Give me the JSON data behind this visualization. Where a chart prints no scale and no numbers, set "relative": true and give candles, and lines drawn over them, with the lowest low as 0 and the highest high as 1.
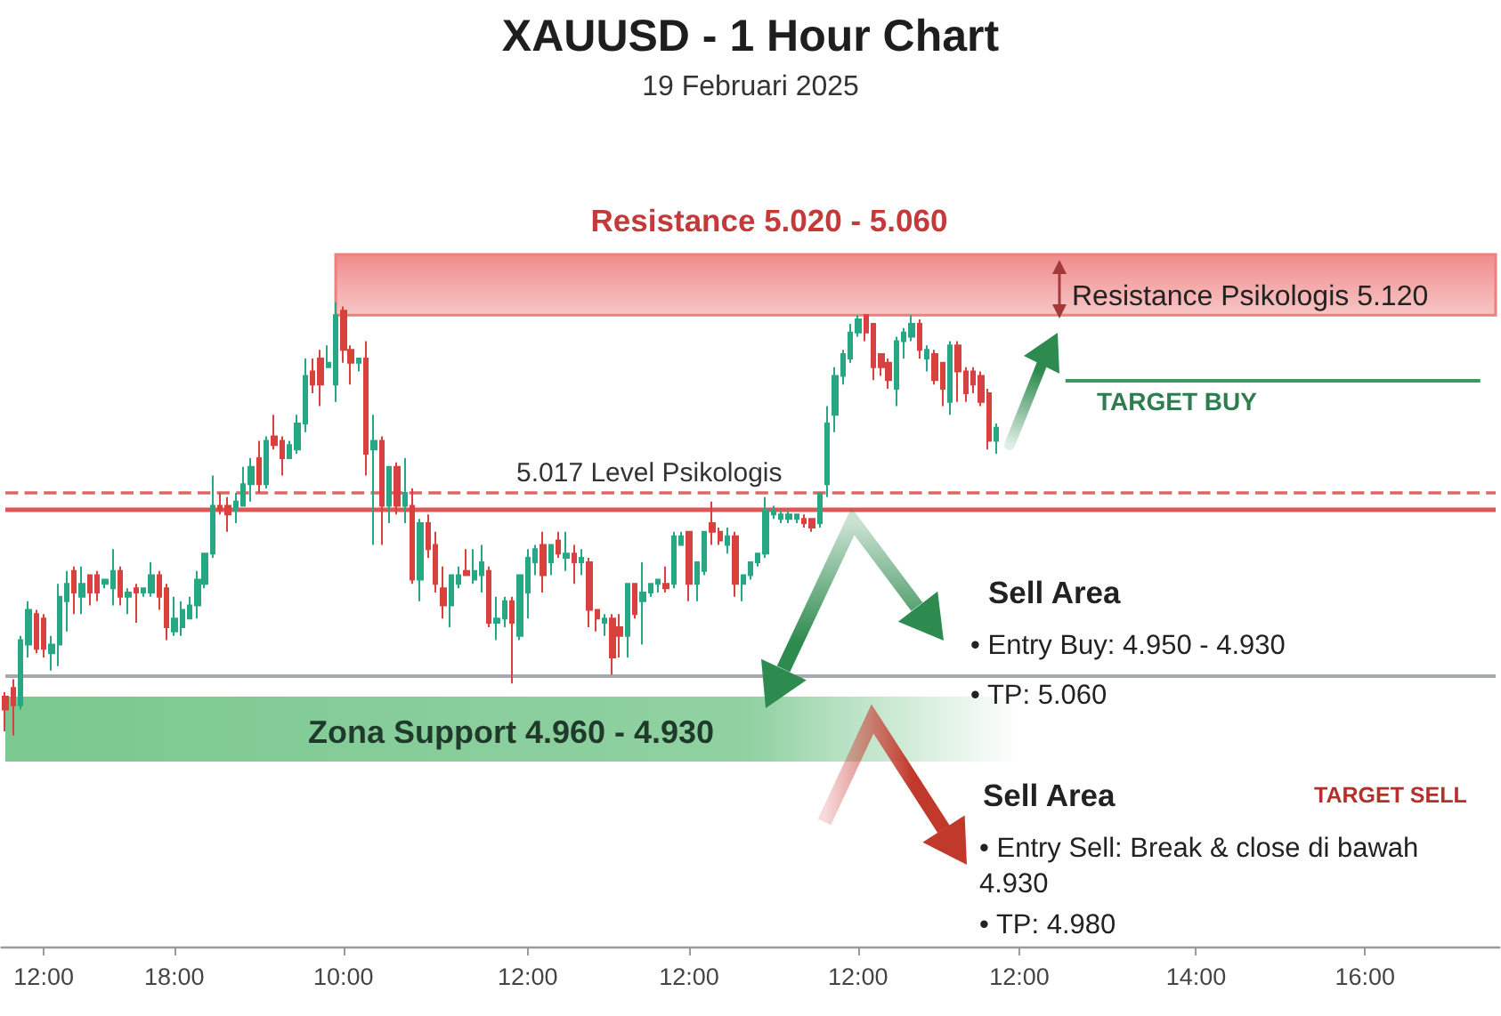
{
  "chart_data": {
    "type": "candlestick",
    "title": "XAUUSD - 1 Hour Chart",
    "subtitle": "19 Februari 2025",
    "relative": true,
    "categories": [
      null,
      null,
      null,
      null,
      null,
      "12:00",
      null,
      null,
      null,
      null,
      null,
      null,
      null,
      null,
      null,
      null,
      null,
      null,
      null,
      null,
      null,
      null,
      "18:00",
      null,
      null,
      null,
      null,
      null,
      null,
      null,
      null,
      null,
      null,
      null,
      null,
      null,
      null,
      null,
      null,
      null,
      null,
      null,
      null,
      null,
      "10:00",
      null,
      null,
      null,
      null,
      null,
      null,
      null,
      null,
      null,
      null,
      null,
      null,
      null,
      null,
      null,
      null,
      null,
      null,
      null,
      null,
      null,
      null,
      null,
      "12:00",
      null,
      null,
      null,
      null,
      null,
      null,
      null,
      null,
      null,
      null,
      null,
      null,
      null,
      null,
      null,
      null,
      null,
      null,
      null,
      null,
      "12:00",
      null,
      null,
      null,
      null,
      null,
      null,
      null,
      null,
      null,
      null,
      null,
      null,
      null,
      null,
      null,
      null,
      null,
      null,
      null,
      null,
      null,
      "12:00",
      null,
      null,
      null,
      null,
      null,
      null,
      null,
      null,
      null,
      null,
      null,
      null,
      null,
      null,
      null,
      null,
      null,
      null,
      null,
      null,
      "12:00",
      null,
      null,
      null,
      null,
      null,
      null,
      null,
      null,
      null,
      null,
      null,
      null,
      null,
      null,
      null,
      null,
      null,
      null,
      null,
      null,
      null,
      null,
      "14:00",
      null,
      null,
      null,
      null,
      null,
      null,
      null,
      null,
      null,
      null,
      null,
      null,
      null,
      null,
      null,
      null,
      null,
      null,
      null,
      null,
      null,
      "16:00",
      null,
      null,
      null,
      null,
      null,
      null,
      null,
      null,
      null,
      null,
      null,
      null,
      null,
      null,
      null,
      null,
      null
    ],
    "ohlc": [
      [
        0.09,
        0.1,
        0.01,
        0.06
      ],
      [
        0.11,
        0.13,
        0.0,
        0.07
      ],
      [
        0.07,
        0.23,
        0.06,
        0.22
      ],
      [
        0.21,
        0.31,
        0.18,
        0.29
      ],
      [
        0.28,
        0.29,
        0.19,
        0.2
      ],
      [
        0.27,
        0.28,
        0.18,
        0.2
      ],
      [
        0.19,
        0.23,
        0.15,
        0.21
      ],
      [
        0.21,
        0.35,
        0.16,
        0.32
      ],
      [
        0.31,
        0.38,
        0.24,
        0.35
      ],
      [
        0.38,
        0.39,
        0.28,
        0.33
      ],
      [
        0.32,
        0.39,
        0.28,
        0.35
      ],
      [
        0.37,
        0.37,
        0.3,
        0.33
      ],
      [
        0.37,
        0.38,
        0.31,
        0.33
      ],
      [
        0.35,
        0.36,
        0.34,
        0.36
      ],
      [
        0.34,
        0.43,
        0.3,
        0.38
      ],
      [
        0.38,
        0.39,
        0.3,
        0.32
      ],
      [
        0.32,
        0.34,
        0.28,
        0.33
      ],
      [
        0.34,
        0.35,
        0.26,
        0.33
      ],
      [
        0.33,
        0.34,
        0.32,
        0.34
      ],
      [
        0.33,
        0.4,
        0.32,
        0.37
      ],
      [
        0.37,
        0.38,
        0.29,
        0.32
      ],
      [
        0.34,
        0.35,
        0.22,
        0.25
      ],
      [
        0.24,
        0.32,
        0.23,
        0.27
      ],
      [
        0.25,
        0.31,
        0.23,
        0.29
      ],
      [
        0.27,
        0.32,
        0.27,
        0.3
      ],
      [
        0.3,
        0.38,
        0.27,
        0.36
      ],
      [
        0.35,
        0.42,
        0.34,
        0.42
      ],
      [
        0.42,
        0.6,
        0.41,
        0.53
      ],
      [
        0.53,
        0.56,
        0.51,
        0.52
      ],
      [
        0.53,
        0.55,
        0.47,
        0.51
      ],
      [
        0.52,
        0.56,
        0.49,
        0.54
      ],
      [
        0.53,
        0.62,
        0.53,
        0.58
      ],
      [
        0.58,
        0.64,
        0.54,
        0.62
      ],
      [
        0.64,
        0.68,
        0.56,
        0.58
      ],
      [
        0.58,
        0.69,
        0.57,
        0.68
      ],
      [
        0.69,
        0.74,
        0.66,
        0.67
      ],
      [
        0.68,
        0.69,
        0.6,
        0.64
      ],
      [
        0.64,
        0.68,
        0.64,
        0.67
      ],
      [
        0.66,
        0.74,
        0.65,
        0.72
      ],
      [
        0.72,
        0.87,
        0.7,
        0.83
      ],
      [
        0.84,
        0.87,
        0.79,
        0.81
      ],
      [
        0.87,
        0.89,
        0.76,
        0.81
      ],
      [
        0.85,
        0.9,
        0.85,
        0.86
      ],
      [
        0.81,
        1.0,
        0.77,
        0.97
      ],
      [
        0.98,
        0.99,
        0.86,
        0.89
      ],
      [
        0.89,
        0.9,
        0.81,
        0.86
      ],
      [
        0.86,
        0.87,
        0.84,
        0.87
      ],
      [
        0.87,
        0.91,
        0.6,
        0.65
      ],
      [
        0.66,
        0.74,
        0.44,
        0.68
      ],
      [
        0.68,
        0.69,
        0.44,
        0.53
      ],
      [
        0.53,
        0.62,
        0.49,
        0.62
      ],
      [
        0.62,
        0.63,
        0.51,
        0.53
      ],
      [
        0.53,
        0.64,
        0.49,
        0.56
      ],
      [
        0.53,
        0.57,
        0.35,
        0.36
      ],
      [
        0.36,
        0.5,
        0.31,
        0.49
      ],
      [
        0.49,
        0.51,
        0.41,
        0.43
      ],
      [
        0.44,
        0.47,
        0.33,
        0.35
      ],
      [
        0.34,
        0.39,
        0.27,
        0.3
      ],
      [
        0.3,
        0.37,
        0.25,
        0.37
      ],
      [
        0.35,
        0.39,
        0.34,
        0.37
      ],
      [
        0.38,
        0.43,
        0.37,
        0.37
      ],
      [
        0.36,
        0.43,
        0.35,
        0.38
      ],
      [
        0.37,
        0.44,
        0.33,
        0.4
      ],
      [
        0.38,
        0.39,
        0.25,
        0.26
      ],
      [
        0.26,
        0.32,
        0.22,
        0.27
      ],
      [
        0.27,
        0.32,
        0.25,
        0.31
      ],
      [
        0.31,
        0.32,
        0.12,
        0.26
      ],
      [
        0.23,
        0.37,
        0.22,
        0.37
      ],
      [
        0.33,
        0.43,
        0.27,
        0.41
      ],
      [
        0.4,
        0.44,
        0.37,
        0.43
      ],
      [
        0.44,
        0.47,
        0.33,
        0.37
      ],
      [
        0.4,
        0.44,
        0.37,
        0.44
      ],
      [
        0.45,
        0.47,
        0.41,
        0.42
      ],
      [
        0.41,
        0.47,
        0.38,
        0.42
      ],
      [
        0.42,
        0.44,
        0.35,
        0.4
      ],
      [
        0.4,
        0.43,
        0.37,
        0.41
      ],
      [
        0.4,
        0.41,
        0.25,
        0.29
      ],
      [
        0.29,
        0.29,
        0.24,
        0.27
      ],
      [
        0.26,
        0.28,
        0.23,
        0.27
      ],
      [
        0.27,
        0.28,
        0.14,
        0.18
      ],
      [
        0.25,
        0.28,
        0.18,
        0.23
      ],
      [
        0.23,
        0.35,
        0.18,
        0.35
      ],
      [
        0.35,
        0.35,
        0.27,
        0.28
      ],
      [
        0.31,
        0.4,
        0.21,
        0.33
      ],
      [
        0.33,
        0.35,
        0.32,
        0.35
      ],
      [
        0.35,
        0.36,
        0.33,
        0.36
      ],
      [
        0.35,
        0.39,
        0.33,
        0.34
      ],
      [
        0.35,
        0.47,
        0.34,
        0.46
      ],
      [
        0.44,
        0.47,
        0.44,
        0.46
      ],
      [
        0.47,
        0.47,
        0.31,
        0.35
      ],
      [
        0.35,
        0.4,
        0.31,
        0.4
      ],
      [
        0.38,
        0.47,
        0.37,
        0.47
      ],
      [
        0.49,
        0.54,
        0.44,
        0.47
      ],
      [
        0.47,
        0.48,
        0.44,
        0.45
      ],
      [
        0.44,
        0.48,
        0.42,
        0.46
      ],
      [
        0.46,
        0.47,
        0.32,
        0.35
      ],
      [
        0.35,
        0.37,
        0.31,
        0.37
      ],
      [
        0.37,
        0.4,
        0.36,
        0.4
      ],
      [
        0.4,
        0.42,
        0.39,
        0.42
      ],
      [
        0.42,
        0.55,
        0.41,
        0.52
      ],
      [
        0.51,
        0.53,
        0.5,
        0.52
      ],
      [
        0.5,
        0.52,
        0.49,
        0.51
      ],
      [
        0.5,
        0.52,
        0.49,
        0.51
      ],
      [
        0.5,
        0.51,
        0.49,
        0.51
      ],
      [
        0.5,
        0.51,
        0.48,
        0.49
      ],
      [
        0.5,
        0.5,
        0.47,
        0.48
      ],
      [
        0.49,
        0.56,
        0.48,
        0.56
      ],
      [
        0.58,
        0.76,
        0.55,
        0.72
      ],
      [
        0.74,
        0.85,
        0.7,
        0.83
      ],
      [
        0.83,
        0.89,
        0.81,
        0.88
      ],
      [
        0.87,
        0.95,
        0.86,
        0.93
      ],
      [
        0.93,
        0.97,
        0.92,
        0.96
      ],
      [
        0.97,
        0.97,
        0.91,
        0.93
      ],
      [
        0.95,
        0.95,
        0.82,
        0.85
      ],
      [
        0.88,
        0.88,
        0.83,
        0.85
      ],
      [
        0.86,
        0.87,
        0.8,
        0.82
      ],
      [
        0.8,
        0.92,
        0.76,
        0.91
      ],
      [
        0.91,
        0.94,
        0.87,
        0.93
      ],
      [
        0.92,
        0.97,
        0.91,
        0.95
      ],
      [
        0.95,
        0.96,
        0.87,
        0.89
      ],
      [
        0.87,
        0.9,
        0.84,
        0.89
      ],
      [
        0.88,
        0.89,
        0.81,
        0.82
      ],
      [
        0.86,
        0.86,
        0.76,
        0.8
      ],
      [
        0.77,
        0.91,
        0.74,
        0.9
      ],
      [
        0.9,
        0.91,
        0.77,
        0.84
      ],
      [
        0.84,
        0.85,
        0.77,
        0.79
      ],
      [
        0.84,
        0.85,
        0.79,
        0.81
      ],
      [
        0.83,
        0.84,
        0.76,
        0.77
      ],
      [
        0.79,
        0.8,
        0.66,
        0.68
      ],
      [
        0.68,
        0.72,
        0.65,
        0.71
      ],
      null,
      null,
      null,
      null,
      null,
      null,
      null,
      null,
      null,
      null,
      null,
      null,
      null,
      null,
      null,
      null,
      null,
      null,
      null,
      null,
      null,
      null,
      null,
      null,
      null,
      null,
      null,
      null,
      null,
      null,
      null,
      null,
      null,
      null,
      null,
      null,
      null,
      null,
      null,
      null,
      null,
      null,
      null,
      null,
      null,
      null,
      null,
      null,
      null,
      null,
      null,
      null,
      null,
      null,
      null,
      null,
      null,
      null,
      null,
      null,
      null,
      null,
      null,
      null,
      null
    ],
    "colors": [
      "#d9413f",
      "#d9413f",
      "#26a884",
      "#26a884",
      "#d9413f",
      "#d9413f",
      "#26a884",
      "#26a884",
      "#26a884",
      "#d9413f",
      "#26a884",
      "#d9413f",
      "#d9413f",
      "#26a884",
      "#26a884",
      "#d9413f",
      "#26a884",
      "#d9413f",
      "#26a884",
      "#26a884",
      "#d9413f",
      "#d9413f",
      "#26a884",
      "#26a884",
      "#26a884",
      "#26a884",
      "#26a884",
      "#26a884",
      "#d9413f",
      "#d9413f",
      "#26a884",
      "#26a884",
      "#26a884",
      "#d9413f",
      "#26a884",
      "#d9413f",
      "#d9413f",
      "#26a884",
      "#26a884",
      "#26a884",
      "#d9413f",
      "#d9413f",
      "#26a884",
      "#26a884",
      "#d9413f",
      "#d9413f",
      "#26a884",
      "#d9413f",
      "#26a884",
      "#d9413f",
      "#26a884",
      "#d9413f",
      "#26a884",
      "#d9413f",
      "#26a884",
      "#d9413f",
      "#d9413f",
      "#d9413f",
      "#26a884",
      "#26a884",
      "#d9413f",
      "#26a884",
      "#26a884",
      "#d9413f",
      "#26a884",
      "#26a884",
      "#d9413f",
      "#26a884",
      "#26a884",
      "#26a884",
      "#d9413f",
      "#26a884",
      "#d9413f",
      "#26a884",
      "#d9413f",
      "#26a884",
      "#d9413f",
      "#d9413f",
      "#26a884",
      "#d9413f",
      "#d9413f",
      "#26a884",
      "#d9413f",
      "#26a884",
      "#26a884",
      "#26a884",
      "#d9413f",
      "#26a884",
      "#26a884",
      "#d9413f",
      "#26a884",
      "#26a884",
      "#d9413f",
      "#d9413f",
      "#26a884",
      "#d9413f",
      "#26a884",
      "#26a884",
      "#26a884",
      "#26a884",
      "#26a884",
      "#26a884",
      "#26a884",
      "#26a884",
      "#d9413f",
      "#d9413f",
      "#26a884",
      "#26a884",
      "#26a884",
      "#26a884",
      "#26a884",
      "#26a884",
      "#d9413f",
      "#d9413f",
      "#d9413f",
      "#d9413f",
      "#26a884",
      "#26a884",
      "#26a884",
      "#d9413f",
      "#26a884",
      "#d9413f",
      "#d9413f",
      "#26a884",
      "#d9413f",
      "#d9413f",
      "#d9413f",
      "#d9413f",
      "#d9413f",
      "#26a884",
      null,
      null,
      null,
      null,
      null,
      null,
      null,
      null,
      null,
      null,
      null,
      null,
      null,
      null,
      null,
      null,
      null,
      null,
      null,
      null,
      null,
      null,
      null,
      null,
      null,
      null,
      null,
      null,
      null,
      null,
      null,
      null,
      null,
      null,
      null,
      null,
      null,
      null,
      null,
      null,
      null,
      null,
      null,
      null,
      null,
      null,
      null,
      null,
      null,
      null,
      null,
      null,
      null,
      null,
      null,
      null,
      null,
      null,
      null,
      null,
      null,
      null,
      null,
      null,
      null
    ],
    "bands": [
      {
        "axis": "y",
        "from": 0.97,
        "to": 1.11,
        "label": "Resistance 5.020 - 5.060",
        "color": "#ef7f7f"
      },
      {
        "axis": "y",
        "from": -0.06,
        "to": 0.09,
        "label": "Zona Support 4.960 - 4.930",
        "color": "#6cc283"
      }
    ],
    "ref_lines": [
      {
        "axis": "y",
        "value": 0.56,
        "label": "5.017 Level Psikologis",
        "color": "#e06666",
        "line_style": "dashed"
      },
      {
        "axis": "y",
        "value": 0.52,
        "color": "#e05656",
        "line_style": "solid"
      },
      {
        "axis": "y",
        "value": 0.14,
        "color": "#a6aaae",
        "line_style": "solid"
      },
      {
        "axis": "y",
        "value": 0.82,
        "label": "TARGET BUY",
        "color": "#3c9a5f",
        "line_style": "solid"
      }
    ],
    "annotations": [
      "Sell Area",
      "• Entry Buy: 4.950 - 4.930",
      "• TP: 5.060",
      "Sell Area",
      "TARGET SELL",
      "• Entry Sell: Break & close di bawah 4.930",
      "• TP: 4.980",
      "Resistance Psikologis 5.120"
    ]
  }
}
